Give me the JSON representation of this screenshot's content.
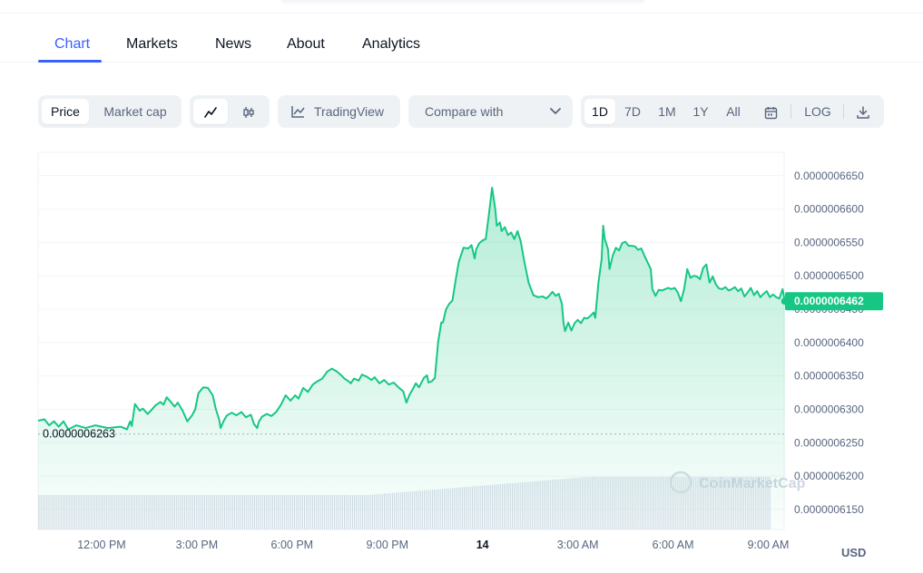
{
  "tabs": [
    {
      "label": "Chart",
      "active": true
    },
    {
      "label": "Markets",
      "active": false
    },
    {
      "label": "News",
      "active": false
    },
    {
      "label": "About",
      "active": false
    },
    {
      "label": "Analytics",
      "active": false
    }
  ],
  "toolbar": {
    "price_label": "Price",
    "market_cap_label": "Market cap",
    "line_icon": "line-chart-icon",
    "candle_icon": "candlestick-icon",
    "tradingview_label": "TradingView",
    "tradingview_icon": "tradingview-icon",
    "compare_label": "Compare with",
    "compare_icon": "chevron-down-icon",
    "ranges": [
      "1D",
      "7D",
      "1M",
      "1Y",
      "All"
    ],
    "active_range": "1D",
    "calendar_icon": "calendar-icon",
    "log_label": "LOG",
    "download_icon": "download-icon"
  },
  "colors": {
    "accent": "#3861fb",
    "line": "#16c784",
    "area_top": "#16c784",
    "badge": "#16c784",
    "volume": "#cfd6e4"
  },
  "chart_data": {
    "type": "area",
    "x_tick_labels": [
      "12:00 PM",
      "3:00 PM",
      "6:00 PM",
      "9:00 PM",
      "14",
      "3:00 AM",
      "6:00 AM",
      "9:00 AM"
    ],
    "x_range_hours": [
      0,
      23.5
    ],
    "x_tick_hours": [
      2,
      5,
      8,
      11,
      14,
      17,
      20,
      23
    ],
    "y_tick_labels": [
      "0.0000006650",
      "0.0000006600",
      "0.0000006550",
      "0.0000006500",
      "0.0000006450",
      "0.0000006400",
      "0.0000006350",
      "0.0000006300",
      "0.0000006250",
      "0.0000006200",
      "0.0000006150"
    ],
    "y_ticks": [
      6.65e-07,
      6.6e-07,
      6.55e-07,
      6.5e-07,
      6.45e-07,
      6.4e-07,
      6.35e-07,
      6.3e-07,
      6.25e-07,
      6.2e-07,
      6.15e-07
    ],
    "ylim": [
      6.12e-07,
      6.685e-07
    ],
    "currency": "USD",
    "low_label": "0.0000006263",
    "low_value": 6.263e-07,
    "last_label": "0.0000006462",
    "last_value": 6.462e-07,
    "series": [
      {
        "points": [
          [
            0.0,
            6.283
          ],
          [
            0.2,
            6.285
          ],
          [
            0.35,
            6.276
          ],
          [
            0.5,
            6.282
          ],
          [
            0.65,
            6.274
          ],
          [
            0.8,
            6.282
          ],
          [
            0.95,
            6.27
          ],
          [
            1.2,
            6.276
          ],
          [
            1.5,
            6.272
          ],
          [
            1.8,
            6.276
          ],
          [
            2.2,
            6.272
          ],
          [
            2.6,
            6.274
          ],
          [
            2.8,
            6.27
          ],
          [
            2.9,
            6.282
          ],
          [
            2.95,
            6.275
          ],
          [
            3.05,
            6.308
          ],
          [
            3.2,
            6.298
          ],
          [
            3.3,
            6.301
          ],
          [
            3.45,
            6.293
          ],
          [
            3.55,
            6.298
          ],
          [
            3.7,
            6.306
          ],
          [
            3.85,
            6.311
          ],
          [
            3.95,
            6.307
          ],
          [
            4.05,
            6.318
          ],
          [
            4.2,
            6.31
          ],
          [
            4.3,
            6.304
          ],
          [
            4.4,
            6.31
          ],
          [
            4.55,
            6.298
          ],
          [
            4.7,
            6.282
          ],
          [
            4.85,
            6.291
          ],
          [
            4.95,
            6.3
          ],
          [
            5.05,
            6.324
          ],
          [
            5.2,
            6.333
          ],
          [
            5.35,
            6.332
          ],
          [
            5.5,
            6.321
          ],
          [
            5.6,
            6.3
          ],
          [
            5.7,
            6.285
          ],
          [
            5.75,
            6.272
          ],
          [
            5.85,
            6.283
          ],
          [
            5.95,
            6.291
          ],
          [
            6.1,
            6.295
          ],
          [
            6.25,
            6.291
          ],
          [
            6.4,
            6.296
          ],
          [
            6.55,
            6.288
          ],
          [
            6.7,
            6.292
          ],
          [
            6.8,
            6.278
          ],
          [
            6.9,
            6.272
          ],
          [
            6.95,
            6.281
          ],
          [
            7.05,
            6.289
          ],
          [
            7.2,
            6.293
          ],
          [
            7.35,
            6.29
          ],
          [
            7.5,
            6.296
          ],
          [
            7.65,
            6.307
          ],
          [
            7.8,
            6.321
          ],
          [
            7.95,
            6.313
          ],
          [
            8.1,
            6.321
          ],
          [
            8.2,
            6.316
          ],
          [
            8.35,
            6.332
          ],
          [
            8.5,
            6.326
          ],
          [
            8.65,
            6.337
          ],
          [
            8.8,
            6.342
          ],
          [
            8.95,
            6.346
          ],
          [
            9.1,
            6.356
          ],
          [
            9.25,
            6.361
          ],
          [
            9.4,
            6.357
          ],
          [
            9.55,
            6.351
          ],
          [
            9.65,
            6.346
          ],
          [
            9.75,
            6.343
          ],
          [
            9.85,
            6.339
          ],
          [
            9.95,
            6.346
          ],
          [
            10.1,
            6.343
          ],
          [
            10.2,
            6.352
          ],
          [
            10.35,
            6.349
          ],
          [
            10.5,
            6.344
          ],
          [
            10.6,
            6.348
          ],
          [
            10.75,
            6.339
          ],
          [
            10.9,
            6.344
          ],
          [
            11.05,
            6.337
          ],
          [
            11.2,
            6.34
          ],
          [
            11.35,
            6.333
          ],
          [
            11.5,
            6.327
          ],
          [
            11.6,
            6.31
          ],
          [
            11.7,
            6.322
          ],
          [
            11.8,
            6.33
          ],
          [
            11.9,
            6.339
          ],
          [
            12.0,
            6.333
          ],
          [
            12.15,
            6.347
          ],
          [
            12.25,
            6.351
          ],
          [
            12.3,
            6.34
          ],
          [
            12.4,
            6.342
          ],
          [
            12.5,
            6.347
          ],
          [
            12.6,
            6.4
          ],
          [
            12.7,
            6.43
          ],
          [
            12.75,
            6.43
          ],
          [
            12.85,
            6.45
          ],
          [
            12.95,
            6.458
          ],
          [
            13.05,
            6.463
          ],
          [
            13.15,
            6.493
          ],
          [
            13.25,
            6.521
          ],
          [
            13.4,
            6.542
          ],
          [
            13.55,
            6.541
          ],
          [
            13.65,
            6.546
          ],
          [
            13.75,
            6.526
          ],
          [
            13.8,
            6.54
          ],
          [
            13.9,
            6.549
          ],
          [
            14.0,
            6.553
          ],
          [
            14.1,
            6.555
          ],
          [
            14.2,
            6.592
          ],
          [
            14.3,
            6.632
          ],
          [
            14.4,
            6.6
          ],
          [
            14.45,
            6.575
          ],
          [
            14.55,
            6.58
          ],
          [
            14.6,
            6.567
          ],
          [
            14.7,
            6.573
          ],
          [
            14.8,
            6.561
          ],
          [
            14.9,
            6.565
          ],
          [
            15.0,
            6.555
          ],
          [
            15.1,
            6.567
          ],
          [
            15.2,
            6.552
          ],
          [
            15.3,
            6.525
          ],
          [
            15.45,
            6.49
          ],
          [
            15.6,
            6.471
          ],
          [
            15.75,
            6.468
          ],
          [
            15.9,
            6.469
          ],
          [
            16.0,
            6.466
          ],
          [
            16.1,
            6.47
          ],
          [
            16.2,
            6.476
          ],
          [
            16.3,
            6.47
          ],
          [
            16.4,
            6.473
          ],
          [
            16.5,
            6.458
          ],
          [
            16.55,
            6.43
          ],
          [
            16.6,
            6.417
          ],
          [
            16.7,
            6.43
          ],
          [
            16.8,
            6.418
          ],
          [
            16.9,
            6.429
          ],
          [
            17.0,
            6.434
          ],
          [
            17.1,
            6.429
          ],
          [
            17.2,
            6.437
          ],
          [
            17.3,
            6.436
          ],
          [
            17.4,
            6.44
          ],
          [
            17.5,
            6.445
          ],
          [
            17.55,
            6.437
          ],
          [
            17.65,
            6.49
          ],
          [
            17.75,
            6.525
          ],
          [
            17.8,
            6.575
          ],
          [
            17.85,
            6.555
          ],
          [
            17.95,
            6.54
          ],
          [
            18.0,
            6.51
          ],
          [
            18.1,
            6.53
          ],
          [
            18.2,
            6.542
          ],
          [
            18.3,
            6.538
          ],
          [
            18.4,
            6.549
          ],
          [
            18.5,
            6.551
          ],
          [
            18.6,
            6.545
          ],
          [
            18.7,
            6.545
          ],
          [
            18.8,
            6.544
          ],
          [
            18.9,
            6.539
          ],
          [
            19.0,
            6.541
          ],
          [
            19.1,
            6.53
          ],
          [
            19.2,
            6.52
          ],
          [
            19.3,
            6.51
          ],
          [
            19.35,
            6.48
          ],
          [
            19.45,
            6.47
          ],
          [
            19.55,
            6.479
          ],
          [
            19.65,
            6.478
          ],
          [
            19.75,
            6.48
          ],
          [
            19.85,
            6.482
          ],
          [
            19.95,
            6.48
          ],
          [
            20.05,
            6.482
          ],
          [
            20.15,
            6.475
          ],
          [
            20.25,
            6.462
          ],
          [
            20.35,
            6.48
          ],
          [
            20.45,
            6.51
          ],
          [
            20.55,
            6.497
          ],
          [
            20.65,
            6.5
          ],
          [
            20.75,
            6.499
          ],
          [
            20.85,
            6.495
          ],
          [
            20.95,
            6.512
          ],
          [
            21.05,
            6.517
          ],
          [
            21.15,
            6.49
          ],
          [
            21.25,
            6.499
          ],
          [
            21.35,
            6.487
          ],
          [
            21.45,
            6.481
          ],
          [
            21.55,
            6.48
          ],
          [
            21.65,
            6.483
          ],
          [
            21.75,
            6.478
          ],
          [
            21.85,
            6.48
          ],
          [
            21.95,
            6.483
          ],
          [
            22.05,
            6.477
          ],
          [
            22.15,
            6.481
          ],
          [
            22.25,
            6.469
          ],
          [
            22.35,
            6.475
          ],
          [
            22.45,
            6.482
          ],
          [
            22.55,
            6.471
          ],
          [
            22.65,
            6.477
          ],
          [
            22.75,
            6.468
          ],
          [
            22.85,
            6.473
          ],
          [
            22.95,
            6.477
          ],
          [
            23.05,
            6.468
          ],
          [
            23.15,
            6.472
          ],
          [
            23.25,
            6.468
          ],
          [
            23.35,
            6.466
          ],
          [
            23.45,
            6.48
          ],
          [
            23.52,
            6.462
          ]
        ]
      }
    ],
    "grid": true,
    "volume_bars": true
  },
  "watermark": {
    "text": "CoinMarketCap",
    "icon": "coinmarketcap-logo-icon"
  }
}
